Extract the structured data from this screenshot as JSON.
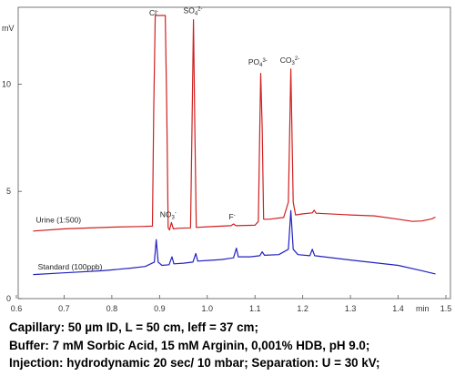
{
  "chart_data": {
    "type": "line",
    "x_unit": "min",
    "y_unit": "mV",
    "xlim": [
      0.6,
      1.5
    ],
    "ylim": [
      0,
      13.2
    ],
    "x_ticks": [
      0.6,
      0.7,
      0.8,
      0.9,
      1.0,
      1.1,
      1.2,
      1.3,
      1.4,
      1.5
    ],
    "x_tick_labels": [
      "0.6",
      "0.7",
      "0.8",
      "0.9",
      "1.0",
      "1.1",
      "1.2",
      "1.3",
      "1.4",
      "1.5"
    ],
    "y_ticks": [
      0,
      5,
      10
    ],
    "y_tick_labels": [
      "0",
      "5",
      "10"
    ],
    "grid": false,
    "series": [
      {
        "name": "Urine  (1:500)",
        "color": "#d02020",
        "points": [
          [
            0.635,
            3.15
          ],
          [
            0.7,
            3.25
          ],
          [
            0.8,
            3.33
          ],
          [
            0.86,
            3.36
          ],
          [
            0.885,
            3.38
          ],
          [
            0.888,
            9.0
          ],
          [
            0.891,
            13.2
          ],
          [
            0.912,
            13.2
          ],
          [
            0.915,
            9.0
          ],
          [
            0.918,
            3.3
          ],
          [
            0.921,
            3.2
          ],
          [
            0.925,
            3.55
          ],
          [
            0.929,
            3.25
          ],
          [
            0.94,
            3.28
          ],
          [
            0.965,
            3.3
          ],
          [
            0.968,
            8.0
          ],
          [
            0.971,
            13.0
          ],
          [
            0.974,
            8.0
          ],
          [
            0.977,
            3.32
          ],
          [
            1.0,
            3.35
          ],
          [
            1.05,
            3.4
          ],
          [
            1.055,
            3.48
          ],
          [
            1.06,
            3.4
          ],
          [
            1.1,
            3.42
          ],
          [
            1.107,
            3.6
          ],
          [
            1.11,
            8.0
          ],
          [
            1.112,
            10.5
          ],
          [
            1.115,
            8.0
          ],
          [
            1.118,
            3.7
          ],
          [
            1.13,
            3.7
          ],
          [
            1.16,
            3.78
          ],
          [
            1.17,
            4.5
          ],
          [
            1.175,
            10.7
          ],
          [
            1.18,
            4.5
          ],
          [
            1.185,
            3.9
          ],
          [
            1.2,
            3.95
          ],
          [
            1.22,
            4.0
          ],
          [
            1.224,
            4.12
          ],
          [
            1.228,
            3.98
          ],
          [
            1.3,
            3.9
          ],
          [
            1.35,
            3.86
          ],
          [
            1.4,
            3.7
          ],
          [
            1.43,
            3.6
          ],
          [
            1.45,
            3.62
          ],
          [
            1.47,
            3.72
          ],
          [
            1.478,
            3.8
          ]
        ]
      },
      {
        "name": "Standard (100ppb)",
        "color": "#2222c0",
        "points": [
          [
            0.635,
            1.12
          ],
          [
            0.7,
            1.2
          ],
          [
            0.78,
            1.3
          ],
          [
            0.84,
            1.42
          ],
          [
            0.87,
            1.5
          ],
          [
            0.889,
            1.7
          ],
          [
            0.893,
            2.75
          ],
          [
            0.897,
            1.7
          ],
          [
            0.905,
            1.55
          ],
          [
            0.92,
            1.58
          ],
          [
            0.926,
            1.95
          ],
          [
            0.93,
            1.62
          ],
          [
            0.95,
            1.65
          ],
          [
            0.97,
            1.7
          ],
          [
            0.976,
            2.1
          ],
          [
            0.98,
            1.75
          ],
          [
            1.0,
            1.78
          ],
          [
            1.03,
            1.82
          ],
          [
            1.055,
            1.9
          ],
          [
            1.061,
            2.35
          ],
          [
            1.065,
            1.95
          ],
          [
            1.09,
            1.95
          ],
          [
            1.11,
            2.0
          ],
          [
            1.115,
            2.18
          ],
          [
            1.12,
            2.02
          ],
          [
            1.15,
            2.05
          ],
          [
            1.17,
            2.3
          ],
          [
            1.175,
            4.1
          ],
          [
            1.18,
            2.3
          ],
          [
            1.19,
            2.05
          ],
          [
            1.215,
            2.0
          ],
          [
            1.22,
            2.3
          ],
          [
            1.225,
            2.0
          ],
          [
            1.3,
            1.8
          ],
          [
            1.4,
            1.55
          ],
          [
            1.45,
            1.3
          ],
          [
            1.478,
            1.15
          ]
        ]
      }
    ],
    "annotations": [
      {
        "text": "Cl",
        "sup": "-",
        "x": 0.888,
        "y": 13.2
      },
      {
        "text": "SO",
        "sub": "4",
        "sup": "2-",
        "x": 0.97,
        "y": 13.3
      },
      {
        "text": "NO",
        "sub": "3",
        "sup": "-",
        "x": 0.918,
        "y": 3.8
      },
      {
        "text": "F",
        "sup": "-",
        "x": 1.052,
        "y": 3.7
      },
      {
        "text": "PO",
        "sub": "4",
        "sup": "3-",
        "x": 1.106,
        "y": 10.9
      },
      {
        "text": "CO",
        "sub": "3",
        "sup": "2-",
        "x": 1.173,
        "y": 11.0
      },
      {
        "text": "Urine  (1:500)",
        "x": 0.641,
        "y": 3.55
      },
      {
        "text": "Standard (100ppb)",
        "x": 0.645,
        "y": 1.35
      }
    ]
  },
  "caption": {
    "line1": "Capillary: 50 µm ID, L = 50 cm, leff = 37 cm;",
    "line2": "Buffer: 7 mM Sorbic Acid, 15 mM Arginin, 0,001% HDB, pH 9.0;",
    "line3": "Injection: hydrodynamic 20 sec/ 10 mbar; Separation: U = 30 kV;"
  }
}
